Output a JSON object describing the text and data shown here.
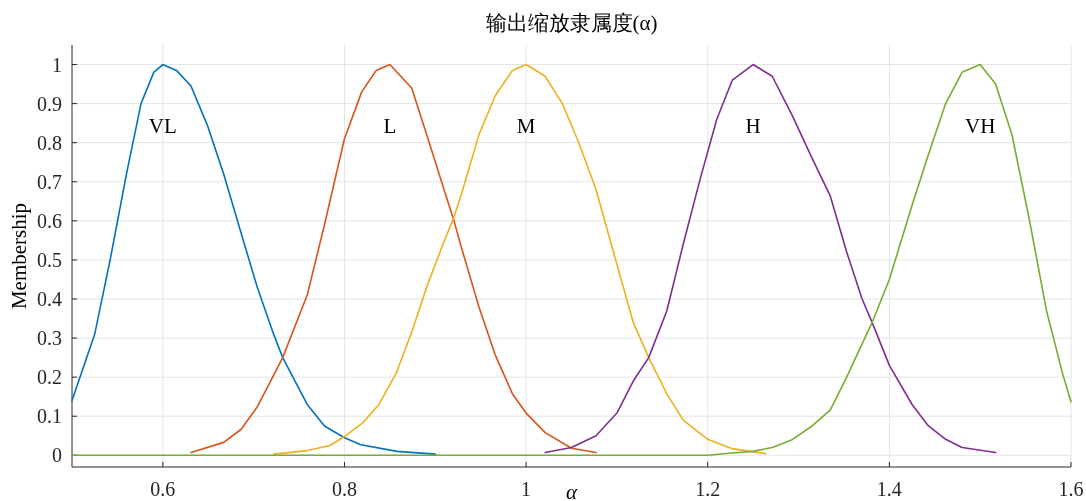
{
  "chart_data": {
    "type": "line",
    "title": "输出缩放隶属度(α)",
    "xlabel": "α",
    "ylabel": "Membership",
    "xlim": [
      0.5,
      1.6
    ],
    "xticks": [
      0.6,
      0.8,
      1,
      1.2,
      1.4,
      1.6
    ],
    "ylim": [
      -0.03,
      1.05
    ],
    "yticks": [
      0,
      0.1,
      0.2,
      0.3,
      0.4,
      0.5,
      0.6,
      0.7,
      0.8,
      0.9,
      1
    ],
    "grid": true,
    "marker": "none",
    "line_style": "solid",
    "series": [
      {
        "name": "VL",
        "color": "#0072bd",
        "x": [
          0.5,
          0.525,
          0.542,
          0.56,
          0.576,
          0.59,
          0.6,
          0.615,
          0.631,
          0.649,
          0.667,
          0.686,
          0.704,
          0.722,
          0.732,
          0.759,
          0.778,
          0.8,
          0.818,
          0.858,
          0.9
        ],
        "values": [
          0.14,
          0.31,
          0.5,
          0.72,
          0.9,
          0.98,
          1,
          0.985,
          0.945,
          0.845,
          0.72,
          0.57,
          0.43,
          0.31,
          0.25,
          0.13,
          0.075,
          0.045,
          0.027,
          0.01,
          0.003
        ]
      },
      {
        "name": "L",
        "color": "#d95319",
        "x": [
          0.631,
          0.667,
          0.686,
          0.704,
          0.732,
          0.759,
          0.778,
          0.8,
          0.819,
          0.835,
          0.85,
          0.874,
          0.892,
          0.911,
          0.92,
          0.929,
          0.948,
          0.966,
          0.985,
          1.0,
          1.021,
          1.05,
          1.077
        ],
        "values": [
          0.007,
          0.033,
          0.066,
          0.124,
          0.25,
          0.41,
          0.59,
          0.81,
          0.93,
          0.985,
          1,
          0.94,
          0.81,
          0.67,
          0.605,
          0.53,
          0.38,
          0.257,
          0.157,
          0.108,
          0.058,
          0.018,
          0.007
        ]
      },
      {
        "name": "M",
        "color": "#edb120",
        "x": [
          0.722,
          0.759,
          0.784,
          0.8,
          0.82,
          0.838,
          0.857,
          0.874,
          0.892,
          0.911,
          0.92,
          0.929,
          0.948,
          0.966,
          0.985,
          1.0,
          1.021,
          1.04,
          1.058,
          1.077,
          1.095,
          1.118,
          1.135,
          1.155,
          1.173,
          1.2,
          1.227,
          1.264
        ],
        "values": [
          0.003,
          0.012,
          0.025,
          0.048,
          0.083,
          0.13,
          0.21,
          0.315,
          0.44,
          0.555,
          0.605,
          0.67,
          0.82,
          0.92,
          0.985,
          1,
          0.97,
          0.9,
          0.8,
          0.68,
          0.53,
          0.34,
          0.25,
          0.157,
          0.09,
          0.041,
          0.017,
          0.004
        ]
      },
      {
        "name": "H",
        "color": "#7e2f8e",
        "x": [
          1.021,
          1.05,
          1.077,
          1.1,
          1.118,
          1.135,
          1.155,
          1.173,
          1.192,
          1.21,
          1.227,
          1.25,
          1.271,
          1.293,
          1.315,
          1.335,
          1.353,
          1.37,
          1.381,
          1.4,
          1.425,
          1.443,
          1.462,
          1.48,
          1.517
        ],
        "values": [
          0.007,
          0.02,
          0.05,
          0.108,
          0.19,
          0.25,
          0.37,
          0.54,
          0.71,
          0.86,
          0.96,
          1,
          0.97,
          0.87,
          0.76,
          0.663,
          0.52,
          0.4,
          0.34,
          0.23,
          0.13,
          0.075,
          0.041,
          0.02,
          0.007
        ]
      },
      {
        "name": "VH",
        "color": "#77ac30",
        "x": [
          0.5,
          1.2,
          1.227,
          1.25,
          1.271,
          1.293,
          1.315,
          1.335,
          1.353,
          1.381,
          1.4,
          1.425,
          1.443,
          1.462,
          1.48,
          1.5,
          1.517,
          1.535,
          1.554,
          1.573,
          1.591,
          1.6
        ],
        "values": [
          0,
          0,
          0.006,
          0.01,
          0.02,
          0.04,
          0.075,
          0.116,
          0.2,
          0.34,
          0.45,
          0.64,
          0.77,
          0.9,
          0.98,
          1,
          0.95,
          0.82,
          0.605,
          0.37,
          0.207,
          0.137
        ]
      }
    ]
  }
}
